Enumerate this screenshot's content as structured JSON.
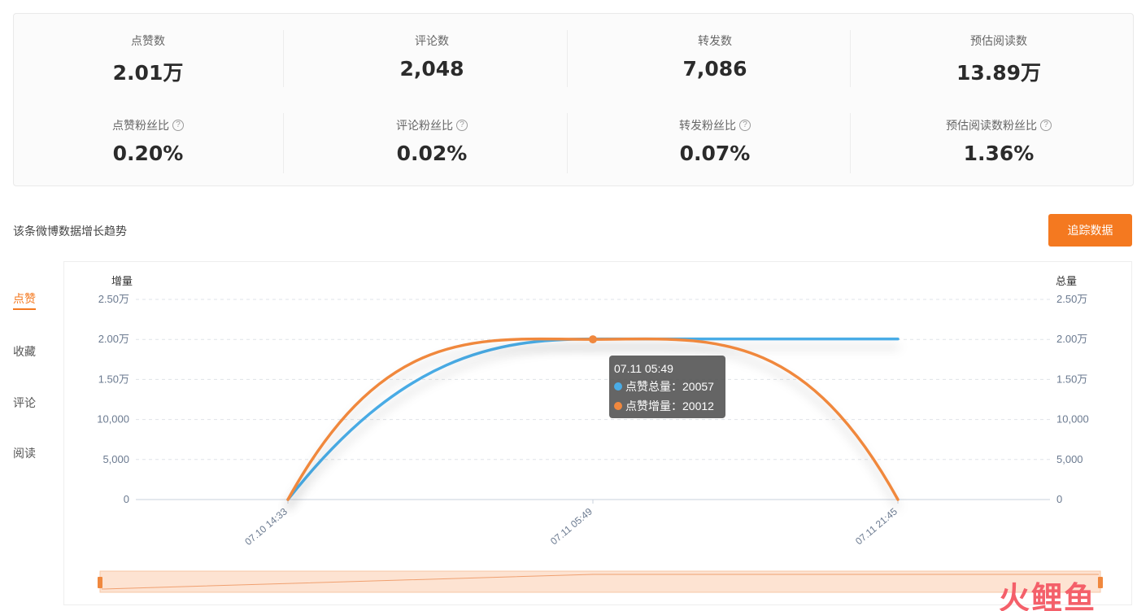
{
  "stats": {
    "row1": [
      {
        "label": "点赞数",
        "value": "2.01万"
      },
      {
        "label": "评论数",
        "value": "2,048"
      },
      {
        "label": "转发数",
        "value": "7,086"
      },
      {
        "label": "预估阅读数",
        "value": "13.89万"
      }
    ],
    "row2": [
      {
        "label": "点赞粉丝比",
        "value": "0.20%",
        "help": "?"
      },
      {
        "label": "评论粉丝比",
        "value": "0.02%",
        "help": "?"
      },
      {
        "label": "转发粉丝比",
        "value": "0.07%",
        "help": "?"
      },
      {
        "label": "预估阅读数粉丝比",
        "value": "1.36%",
        "help": "?"
      }
    ]
  },
  "section": {
    "title": "该条微博数据增长趋势",
    "track_button": "追踪数据"
  },
  "side_tabs": [
    {
      "label": "点赞",
      "active": true
    },
    {
      "label": "收藏",
      "active": false
    },
    {
      "label": "评论",
      "active": false
    },
    {
      "label": "阅读",
      "active": false
    }
  ],
  "tooltip": {
    "time": "07.11 05:49",
    "rows": [
      {
        "text": "点赞总量：20057",
        "color": "#4aace6"
      },
      {
        "text": "点赞增量：20012",
        "color": "#f0883e"
      }
    ]
  },
  "watermark": {
    "chars": [
      "火",
      "鲤",
      "鱼"
    ],
    "colors": [
      "#f4606a",
      "#f4606a",
      "#f4606a"
    ]
  },
  "chart_data": {
    "type": "line",
    "left_axis_title": "增量",
    "right_axis_title": "总量",
    "y_tick_labels": [
      "0",
      "5,000",
      "10,000",
      "1.50万",
      "2.00万",
      "2.50万"
    ],
    "y_tick_values": [
      0,
      5000,
      10000,
      15000,
      20000,
      25000
    ],
    "ylim": [
      0,
      25000
    ],
    "x": [
      "07.10 14:33",
      "07.11 05:49",
      "07.11 21:45"
    ],
    "series": [
      {
        "name": "点赞总量",
        "color": "#4aace6",
        "values": [
          0,
          20057,
          20057
        ]
      },
      {
        "name": "点赞增量",
        "color": "#f0883e",
        "values": [
          0,
          20012,
          0
        ]
      }
    ],
    "grid": true,
    "smooth": true
  },
  "colors": {
    "accent": "#f47920",
    "total": "#4aace6",
    "increment": "#f0883e"
  }
}
